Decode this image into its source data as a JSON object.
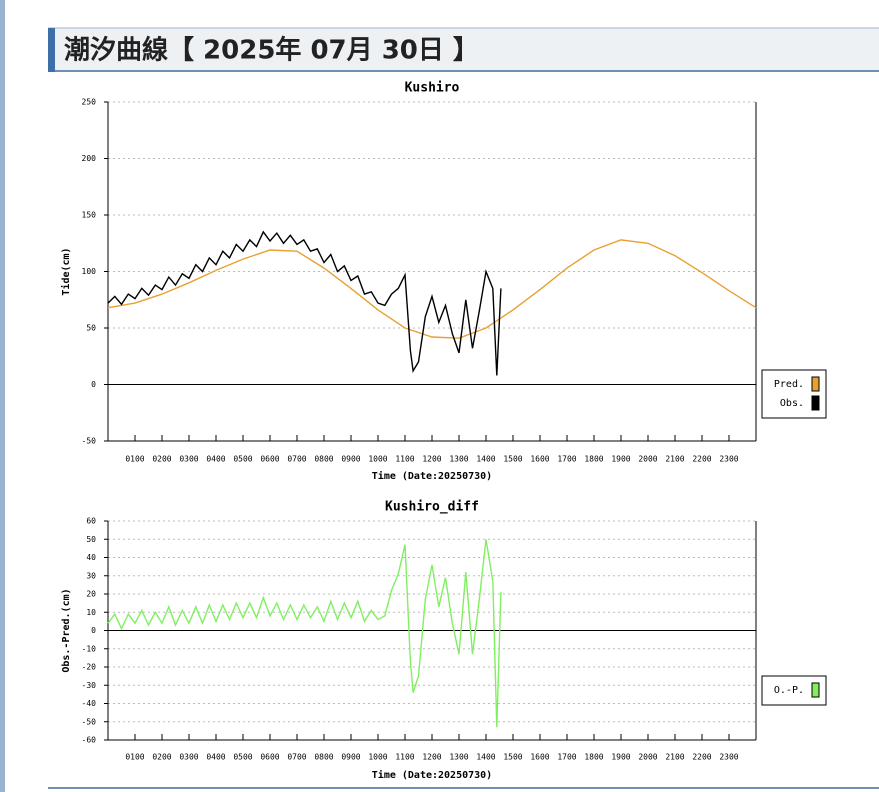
{
  "header": {
    "title": "潮汐曲線【 2025年 07月 30日 】"
  },
  "chart_data": [
    {
      "type": "line",
      "title": "Kushiro",
      "xlabel": "Time (Date:20250730)",
      "ylabel": "Tide(cm)",
      "xlim": [
        0,
        24
      ],
      "ylim": [
        -50,
        250
      ],
      "xticks": [
        {
          "value": 1,
          "label": "0100"
        },
        {
          "value": 2,
          "label": "0200"
        },
        {
          "value": 3,
          "label": "0300"
        },
        {
          "value": 4,
          "label": "0400"
        },
        {
          "value": 5,
          "label": "0500"
        },
        {
          "value": 6,
          "label": "0600"
        },
        {
          "value": 7,
          "label": "0700"
        },
        {
          "value": 8,
          "label": "0800"
        },
        {
          "value": 9,
          "label": "0900"
        },
        {
          "value": 10,
          "label": "1000"
        },
        {
          "value": 11,
          "label": "1100"
        },
        {
          "value": 12,
          "label": "1200"
        },
        {
          "value": 13,
          "label": "1300"
        },
        {
          "value": 14,
          "label": "1400"
        },
        {
          "value": 15,
          "label": "1500"
        },
        {
          "value": 16,
          "label": "1600"
        },
        {
          "value": 17,
          "label": "1700"
        },
        {
          "value": 18,
          "label": "1800"
        },
        {
          "value": 19,
          "label": "1900"
        },
        {
          "value": 20,
          "label": "2000"
        },
        {
          "value": 21,
          "label": "2100"
        },
        {
          "value": 22,
          "label": "2200"
        },
        {
          "value": 23,
          "label": "2300"
        }
      ],
      "yticks": [
        -50,
        0,
        50,
        100,
        150,
        200,
        250
      ],
      "grid": true,
      "legend": "right",
      "series": [
        {
          "name": "Pred.",
          "color": "#e8a030",
          "x": [
            0,
            1,
            2,
            3,
            4,
            5,
            6,
            7,
            8,
            9,
            10,
            11,
            12,
            13,
            14,
            15,
            16,
            17,
            18,
            19,
            20,
            21,
            22,
            23,
            24
          ],
          "values": [
            68,
            72,
            80,
            90,
            101,
            111,
            119,
            118,
            103,
            85,
            66,
            50,
            42,
            41,
            50,
            66,
            84,
            103,
            119,
            128,
            125,
            114,
            99,
            83,
            68
          ]
        },
        {
          "name": "Obs.",
          "color": "#000000",
          "x": [
            0,
            0.25,
            0.5,
            0.75,
            1,
            1.25,
            1.5,
            1.75,
            2,
            2.25,
            2.5,
            2.75,
            3,
            3.25,
            3.5,
            3.75,
            4,
            4.25,
            4.5,
            4.75,
            5,
            5.25,
            5.5,
            5.75,
            6,
            6.25,
            6.5,
            6.75,
            7,
            7.25,
            7.5,
            7.75,
            8,
            8.25,
            8.5,
            8.75,
            9,
            9.25,
            9.5,
            9.75,
            10,
            10.25,
            10.5,
            10.75,
            11,
            11.2,
            11.3,
            11.5,
            11.75,
            12,
            12.25,
            12.5,
            12.75,
            13,
            13.25,
            13.5,
            13.75,
            14,
            14.25,
            14.4,
            14.55
          ],
          "values": [
            72,
            78,
            71,
            80,
            76,
            85,
            79,
            88,
            84,
            95,
            88,
            98,
            94,
            106,
            100,
            112,
            106,
            118,
            112,
            124,
            118,
            128,
            122,
            135,
            127,
            134,
            125,
            132,
            124,
            128,
            118,
            120,
            108,
            115,
            100,
            105,
            92,
            96,
            80,
            82,
            72,
            70,
            80,
            85,
            97,
            30,
            12,
            20,
            60,
            78,
            55,
            70,
            45,
            28,
            75,
            32,
            65,
            100,
            85,
            8,
            85
          ]
        }
      ]
    },
    {
      "type": "line",
      "title": "Kushiro_diff",
      "xlabel": "Time (Date:20250730)",
      "ylabel": "Obs.-Pred.(cm)",
      "xlim": [
        0,
        24
      ],
      "ylim": [
        -60,
        60
      ],
      "xticks": [
        {
          "value": 1,
          "label": "0100"
        },
        {
          "value": 2,
          "label": "0200"
        },
        {
          "value": 3,
          "label": "0300"
        },
        {
          "value": 4,
          "label": "0400"
        },
        {
          "value": 5,
          "label": "0500"
        },
        {
          "value": 6,
          "label": "0600"
        },
        {
          "value": 7,
          "label": "0700"
        },
        {
          "value": 8,
          "label": "0800"
        },
        {
          "value": 9,
          "label": "0900"
        },
        {
          "value": 10,
          "label": "1000"
        },
        {
          "value": 11,
          "label": "1100"
        },
        {
          "value": 12,
          "label": "1200"
        },
        {
          "value": 13,
          "label": "1300"
        },
        {
          "value": 14,
          "label": "1400"
        },
        {
          "value": 15,
          "label": "1500"
        },
        {
          "value": 16,
          "label": "1600"
        },
        {
          "value": 17,
          "label": "1700"
        },
        {
          "value": 18,
          "label": "1800"
        },
        {
          "value": 19,
          "label": "1900"
        },
        {
          "value": 20,
          "label": "2000"
        },
        {
          "value": 21,
          "label": "2100"
        },
        {
          "value": 22,
          "label": "2200"
        },
        {
          "value": 23,
          "label": "2300"
        }
      ],
      "yticks": [
        -60,
        -50,
        -40,
        -30,
        -20,
        -10,
        0,
        10,
        20,
        30,
        40,
        50,
        60
      ],
      "grid": true,
      "legend": "right",
      "series": [
        {
          "name": "O.-P.",
          "color": "#80f060",
          "x": [
            0,
            0.25,
            0.5,
            0.75,
            1,
            1.25,
            1.5,
            1.75,
            2,
            2.25,
            2.5,
            2.75,
            3,
            3.25,
            3.5,
            3.75,
            4,
            4.25,
            4.5,
            4.75,
            5,
            5.25,
            5.5,
            5.75,
            6,
            6.25,
            6.5,
            6.75,
            7,
            7.25,
            7.5,
            7.75,
            8,
            8.25,
            8.5,
            8.75,
            9,
            9.25,
            9.5,
            9.75,
            10,
            10.25,
            10.5,
            10.75,
            11,
            11.2,
            11.3,
            11.5,
            11.75,
            12,
            12.25,
            12.5,
            12.75,
            13,
            13.25,
            13.5,
            13.75,
            14,
            14.25,
            14.4,
            14.55
          ],
          "values": [
            4,
            9,
            1,
            9,
            4,
            11,
            3,
            10,
            4,
            13,
            3,
            11,
            4,
            13,
            4,
            14,
            5,
            14,
            6,
            15,
            7,
            15,
            7,
            18,
            8,
            15,
            6,
            14,
            6,
            14,
            7,
            13,
            5,
            16,
            6,
            15,
            7,
            16,
            5,
            11,
            6,
            8,
            22,
            31,
            47,
            -17,
            -34,
            -25,
            17,
            36,
            13,
            29,
            4,
            -13,
            32,
            -13,
            17,
            50,
            27,
            -53,
            21
          ]
        }
      ]
    }
  ]
}
